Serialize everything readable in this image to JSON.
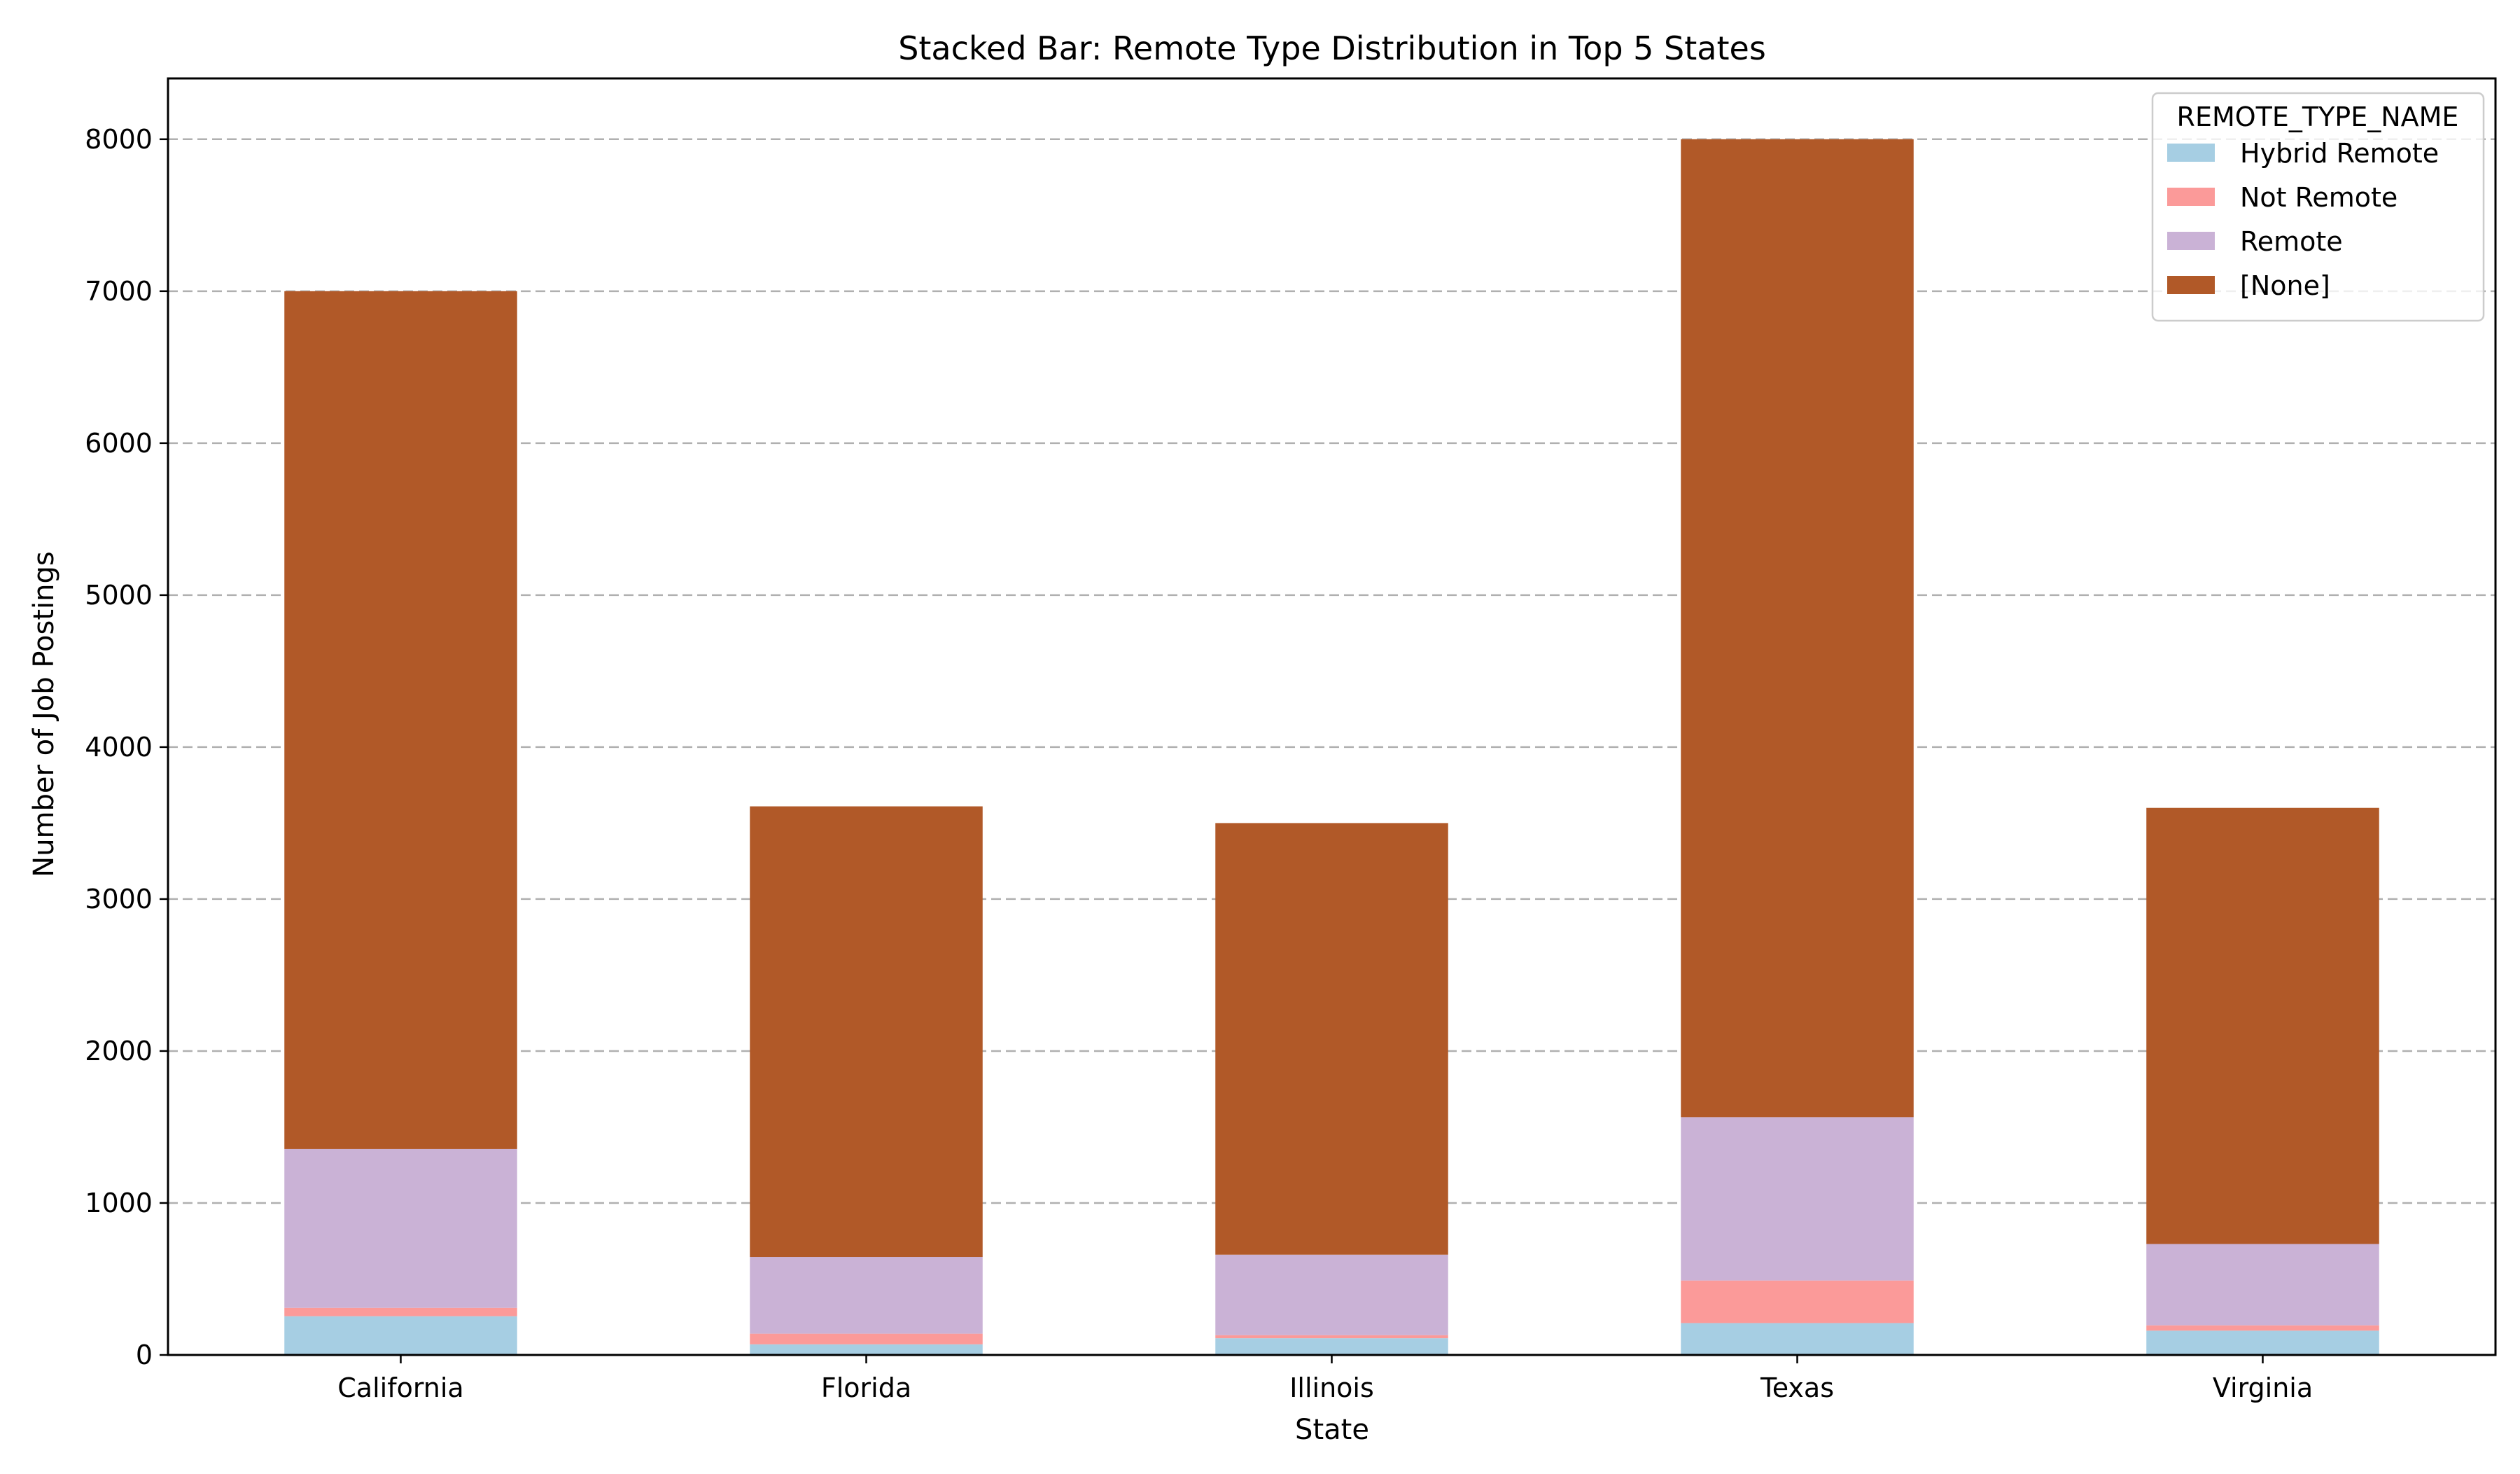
{
  "chart_data": {
    "type": "bar",
    "stacked": true,
    "title": "Stacked Bar: Remote Type Distribution in Top 5 States",
    "xlabel": "State",
    "ylabel": "Number of Job Postings",
    "categories": [
      "California",
      "Florida",
      "Illinois",
      "Texas",
      "Virginia"
    ],
    "series": [
      {
        "name": "Hybrid Remote",
        "color": "#a6cee3",
        "values": [
          255,
          70,
          110,
          210,
          160
        ]
      },
      {
        "name": "Not Remote",
        "color": "#fb9a99",
        "values": [
          55,
          70,
          20,
          280,
          35
        ]
      },
      {
        "name": "Remote",
        "color": "#cab2d6",
        "values": [
          1045,
          505,
          530,
          1075,
          535
        ]
      },
      {
        "name": "[None]",
        "color": "#b15928",
        "values": [
          5645,
          2965,
          2840,
          6435,
          2870
        ]
      }
    ],
    "ylim": [
      0,
      8400
    ],
    "yticks": [
      0,
      1000,
      2000,
      3000,
      4000,
      5000,
      6000,
      7000,
      8000
    ],
    "grid": "y-dashed",
    "legend": {
      "title": "REMOTE_TYPE_NAME",
      "position": "top-right"
    }
  }
}
